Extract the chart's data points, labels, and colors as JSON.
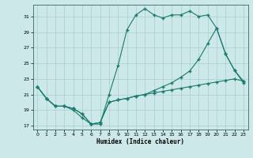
{
  "xlabel": "Humidex (Indice chaleur)",
  "bg_color": "#cce8e8",
  "line_color": "#1a7a6e",
  "grid_color": "#aacece",
  "xlim": [
    -0.5,
    23.5
  ],
  "ylim": [
    16.5,
    32.5
  ],
  "xticks": [
    0,
    1,
    2,
    3,
    4,
    5,
    6,
    7,
    8,
    9,
    10,
    11,
    12,
    13,
    14,
    15,
    16,
    17,
    18,
    19,
    20,
    21,
    22,
    23
  ],
  "yticks": [
    17,
    19,
    21,
    23,
    25,
    27,
    29,
    31
  ],
  "line1_x": [
    0,
    1,
    2,
    3,
    4,
    5,
    6,
    7,
    8,
    9,
    10,
    11,
    12,
    13,
    14,
    15,
    16,
    17,
    18,
    19,
    20,
    21,
    22,
    23
  ],
  "line1_y": [
    22,
    20.5,
    19.5,
    19.5,
    19,
    18,
    17.2,
    17.2,
    21,
    24.7,
    29.3,
    31.2,
    32,
    31.2,
    30.8,
    31.2,
    31.2,
    31.7,
    31,
    31.2,
    29.5,
    26.2,
    24.1,
    22.5
  ],
  "line2_x": [
    0,
    1,
    2,
    3,
    4,
    5,
    6,
    7,
    8,
    9,
    10,
    11,
    12,
    13,
    14,
    15,
    16,
    17,
    18,
    19,
    20,
    21,
    22,
    23
  ],
  "line2_y": [
    22,
    20.5,
    19.5,
    19.5,
    19.2,
    18.5,
    17.2,
    17.4,
    20.0,
    20.3,
    20.5,
    20.8,
    21.0,
    21.2,
    21.4,
    21.6,
    21.8,
    22.0,
    22.2,
    22.4,
    22.6,
    22.8,
    23.0,
    22.7
  ],
  "line3_x": [
    0,
    1,
    2,
    3,
    4,
    5,
    6,
    7,
    8,
    9,
    10,
    11,
    12,
    13,
    14,
    15,
    16,
    17,
    18,
    19,
    20,
    21,
    22,
    23
  ],
  "line3_y": [
    22,
    20.5,
    19.5,
    19.5,
    19.2,
    18.5,
    17.2,
    17.4,
    20.0,
    20.3,
    20.5,
    20.8,
    21.0,
    21.5,
    22.0,
    22.5,
    23.2,
    24.0,
    25.5,
    27.5,
    29.5,
    26.2,
    24.1,
    22.7
  ]
}
